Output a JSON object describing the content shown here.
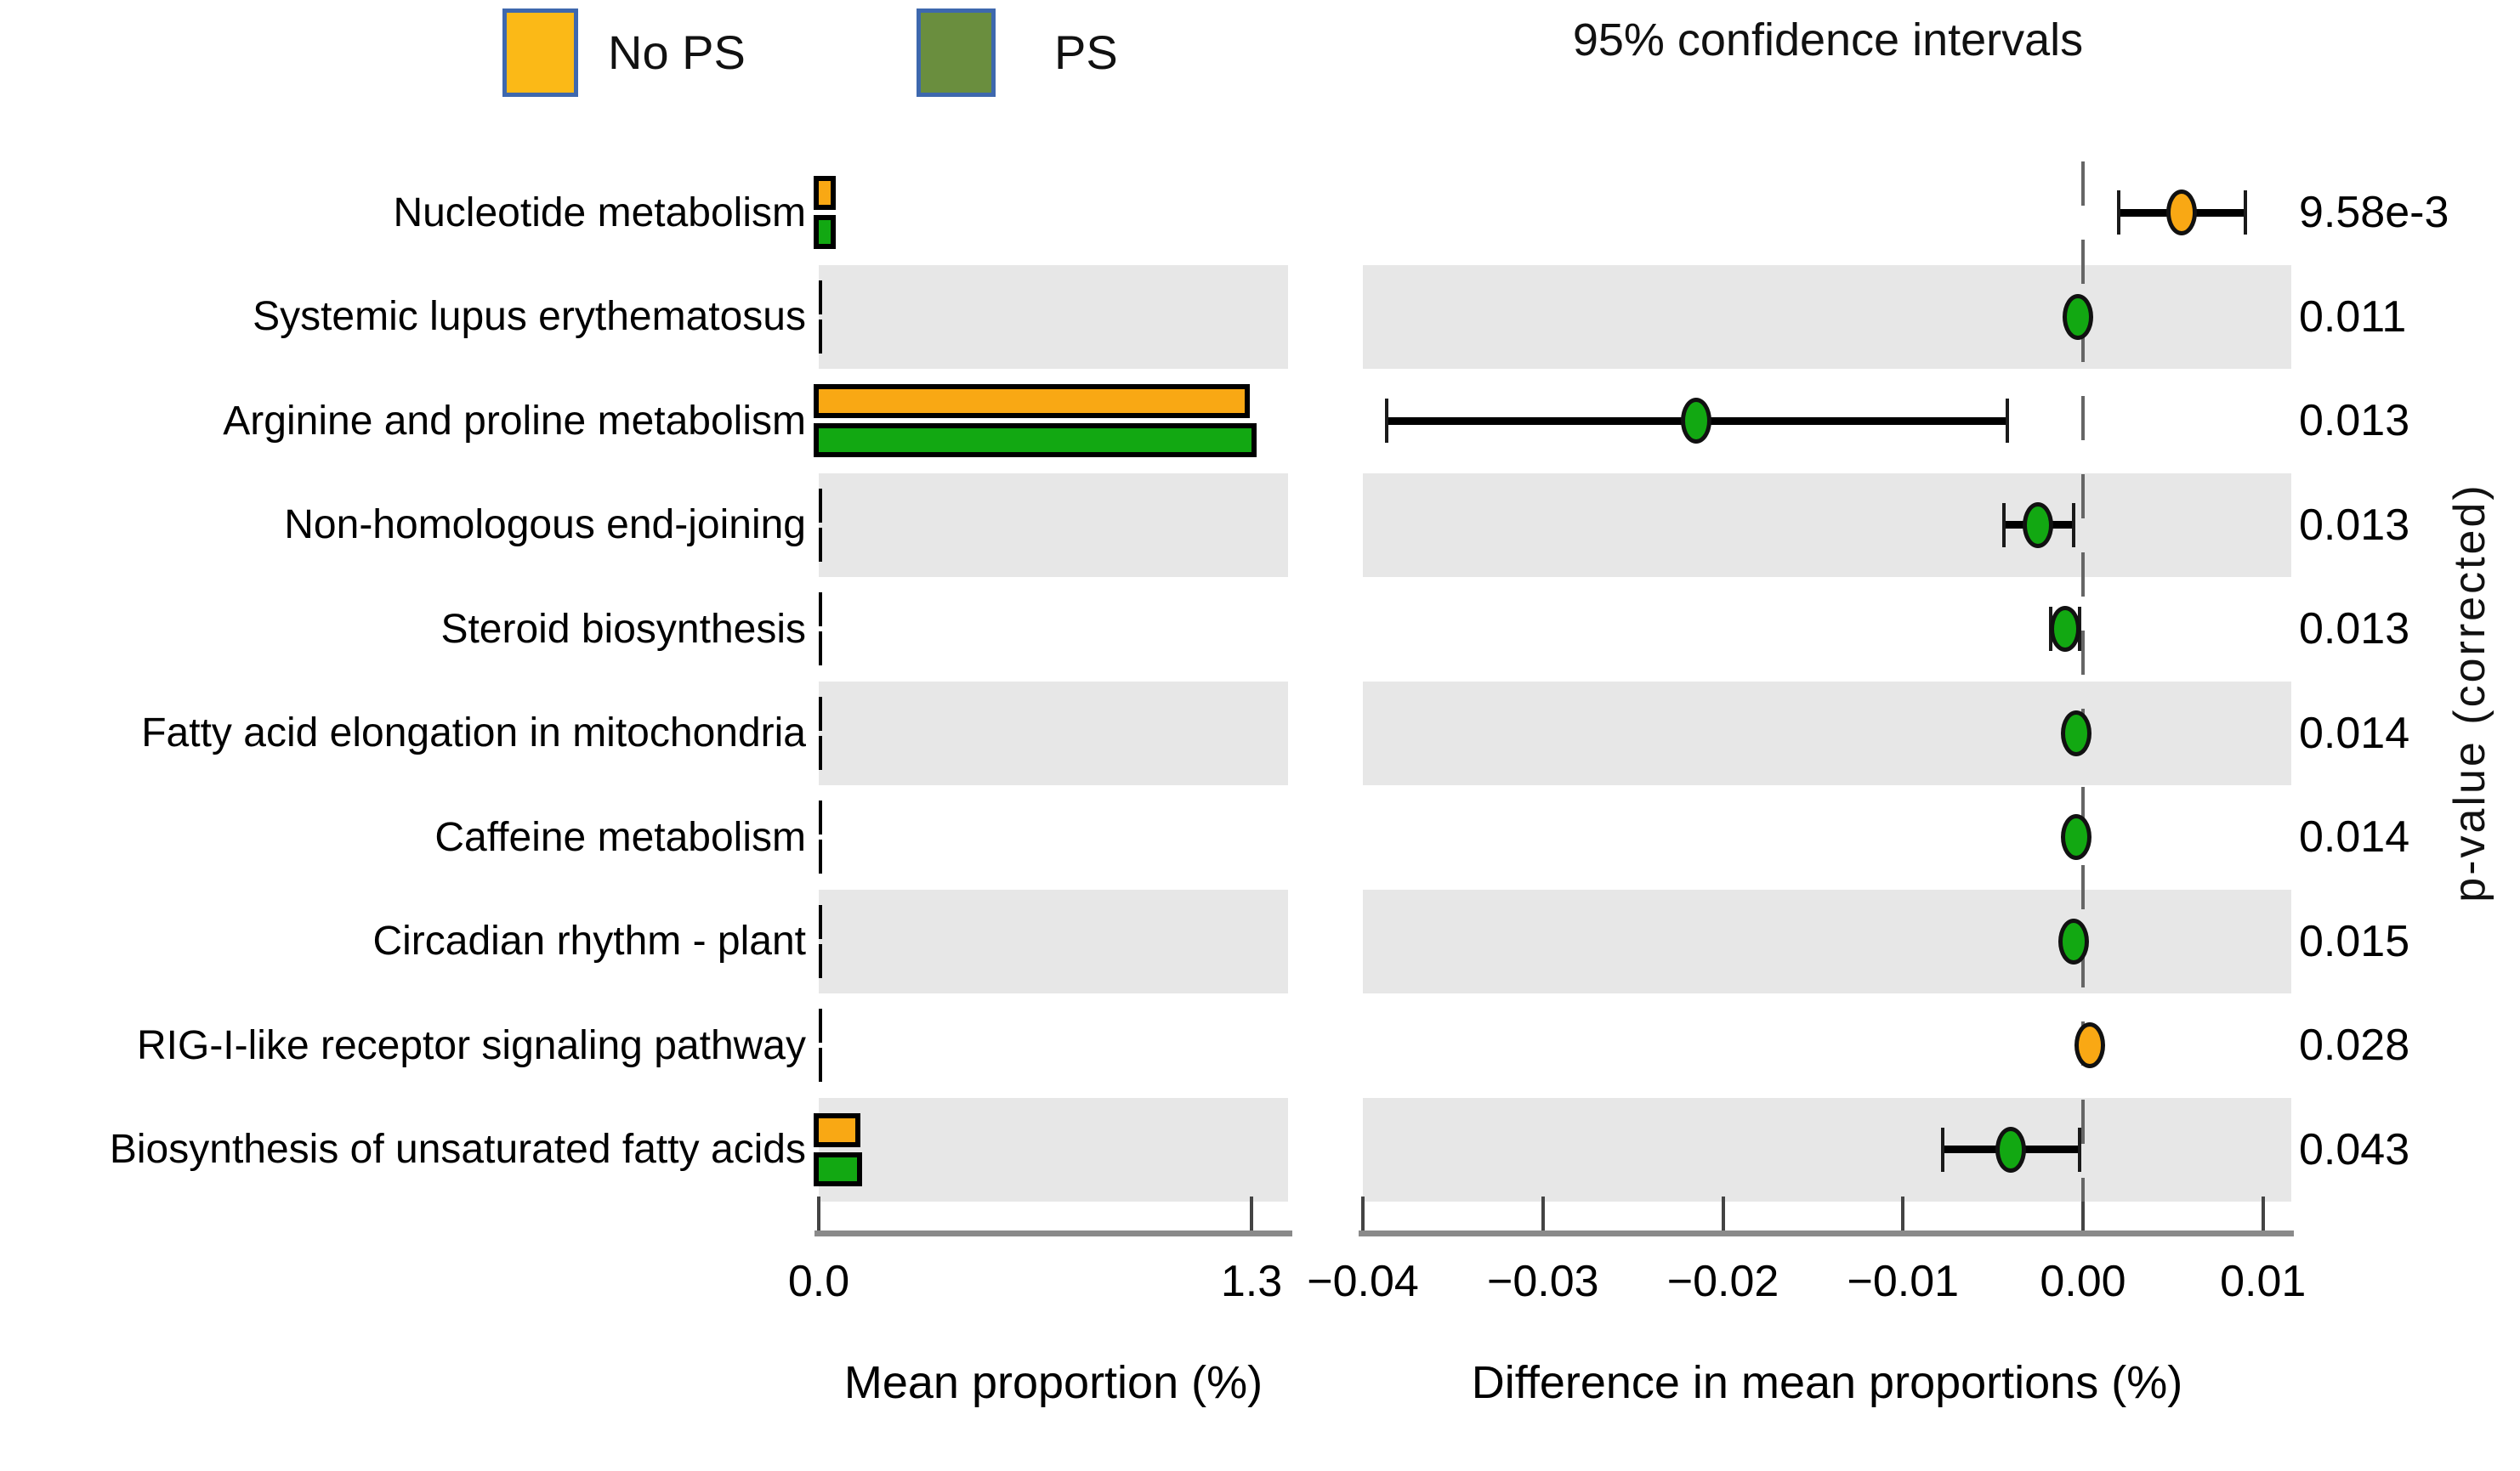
{
  "figure": {
    "ci_title": "95% confidence intervals",
    "right_ylabel": "p-value (corrected)",
    "legend": {
      "items": [
        {
          "label": "No PS",
          "swatch": "orange-square"
        },
        {
          "label": "PS",
          "swatch": "olive-green-square"
        }
      ]
    },
    "colors": {
      "no_ps": "#F9A814",
      "ps": "#12A812",
      "legend_no_ps": "#FBB917",
      "legend_ps": "#6A8E3E",
      "legend_border": "#3E68AE",
      "stripe": "#E7E7E7",
      "axis_line": "#8A8A8A",
      "zero_line": "#666666",
      "error_bar": "#000000"
    }
  },
  "chart_data": {
    "type": "bar",
    "subtype": "STAMP extended error bar plot (grouped horizontal bars + 95% CI dot plot + p-values)",
    "title": "95% confidence intervals",
    "categories": [
      "Nucleotide metabolism",
      "Systemic lupus erythematosus",
      "Arginine and proline metabolism",
      "Non-homologous end-joining",
      "Steroid biosynthesis",
      "Fatty acid elongation in mitochondria",
      "Caffeine metabolism",
      "Circadian rhythm - plant",
      "RIG-I-like receptor signaling pathway",
      "Biosynthesis of unsaturated fatty acids"
    ],
    "series": [
      {
        "name": "No PS",
        "values": [
          0.035,
          0.005,
          1.28,
          0.005,
          0.004,
          0.004,
          0.004,
          0.004,
          0.004,
          0.11
        ]
      },
      {
        "name": "PS",
        "values": [
          0.035,
          0.005,
          1.3,
          0.005,
          0.004,
          0.004,
          0.004,
          0.004,
          0.004,
          0.115
        ]
      }
    ],
    "differences": [
      {
        "mean": 0.0055,
        "ci_lo": 0.002,
        "ci_hi": 0.009,
        "group": "No PS"
      },
      {
        "mean": -0.0003,
        "ci_lo": -0.0003,
        "ci_hi": -0.0003,
        "group": "PS"
      },
      {
        "mean": -0.0215,
        "ci_lo": -0.0387,
        "ci_hi": -0.0042,
        "group": "PS"
      },
      {
        "mean": -0.0025,
        "ci_lo": -0.0044,
        "ci_hi": -0.0005,
        "group": "PS"
      },
      {
        "mean": -0.001,
        "ci_lo": -0.0018,
        "ci_hi": -0.0002,
        "group": "PS"
      },
      {
        "mean": -0.0004,
        "ci_lo": -0.0004,
        "ci_hi": -0.0004,
        "group": "PS"
      },
      {
        "mean": -0.0004,
        "ci_lo": -0.0004,
        "ci_hi": -0.0004,
        "group": "PS"
      },
      {
        "mean": -0.0005,
        "ci_lo": -0.0005,
        "ci_hi": -0.0005,
        "group": "PS"
      },
      {
        "mean": 0.0004,
        "ci_lo": 0.0004,
        "ci_hi": 0.0004,
        "group": "No PS"
      },
      {
        "mean": -0.004,
        "ci_lo": -0.0078,
        "ci_hi": -0.0002,
        "group": "PS"
      }
    ],
    "p_values": [
      "9.58e-3",
      "0.011",
      "0.013",
      "0.013",
      "0.013",
      "0.014",
      "0.014",
      "0.015",
      "0.028",
      "0.043"
    ],
    "left_axis": {
      "label": "Mean proportion (%)",
      "max": 1.3,
      "ticks": [
        {
          "label": "0.0",
          "value": 0.0
        },
        {
          "label": "1.3",
          "value": 1.3
        }
      ]
    },
    "right_axis": {
      "label": "Difference in mean proportions (%)",
      "range": [
        -0.04,
        0.0116
      ],
      "ticks": [
        {
          "label": "−0.04",
          "value": -0.04
        },
        {
          "label": "−0.03",
          "value": -0.03
        },
        {
          "label": "−0.02",
          "value": -0.02
        },
        {
          "label": "−0.01",
          "value": -0.01
        },
        {
          "label": "0.00",
          "value": 0.0
        },
        {
          "label": "0.01",
          "value": 0.01
        }
      ]
    },
    "grid": "alternating gray row shading, dashed vertical zero line in CI panel",
    "legend_position": "top-left"
  }
}
